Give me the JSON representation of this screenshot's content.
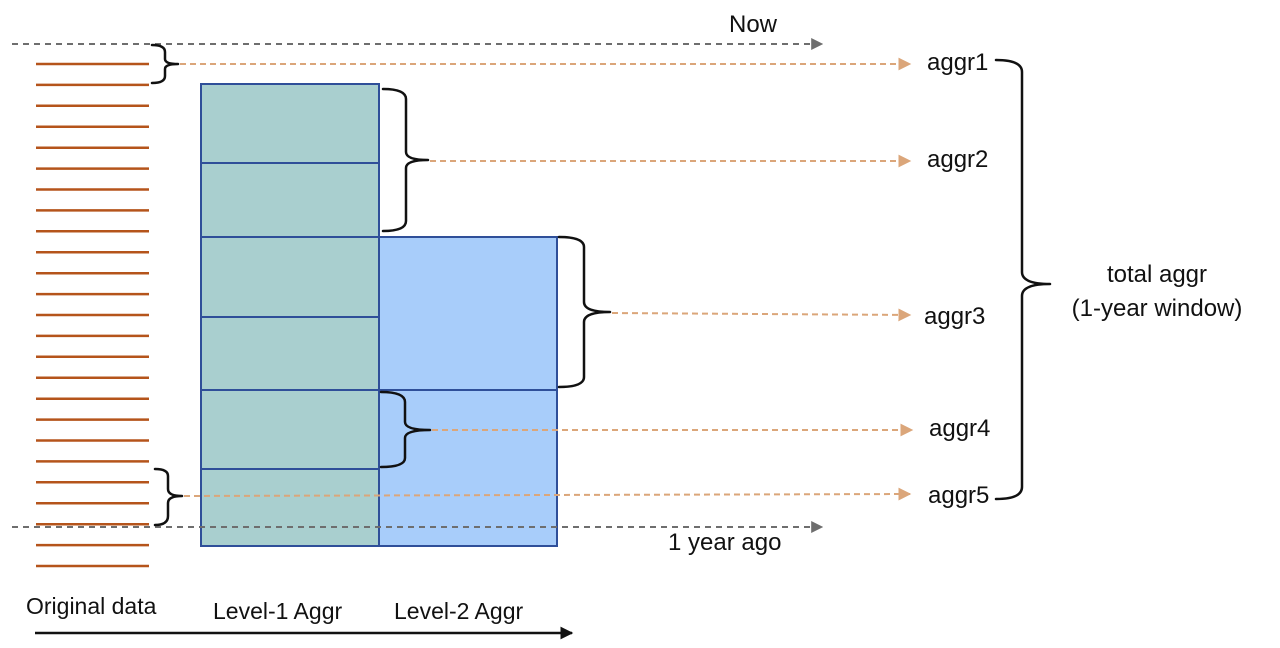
{
  "labels": {
    "now": "Now",
    "year_ago": "1 year ago",
    "original_data": "Original data",
    "level1": "Level-1 Aggr",
    "level2": "Level-2 Aggr",
    "total_line1": "total aggr",
    "total_line2": "(1-year window)"
  },
  "aggregates": [
    "aggr1",
    "aggr2",
    "aggr3",
    "aggr4",
    "aggr5"
  ],
  "original_data_row_count": 25,
  "colors": {
    "original_lines": "#b5541b",
    "level1_fill": "#a9cfcf",
    "level2_fill": "#a8cdfa",
    "box_stroke": "#2f4f99",
    "time_lines": "#6e6e6e",
    "aggr_arrows": "#dba67a",
    "braces": "#111111"
  }
}
